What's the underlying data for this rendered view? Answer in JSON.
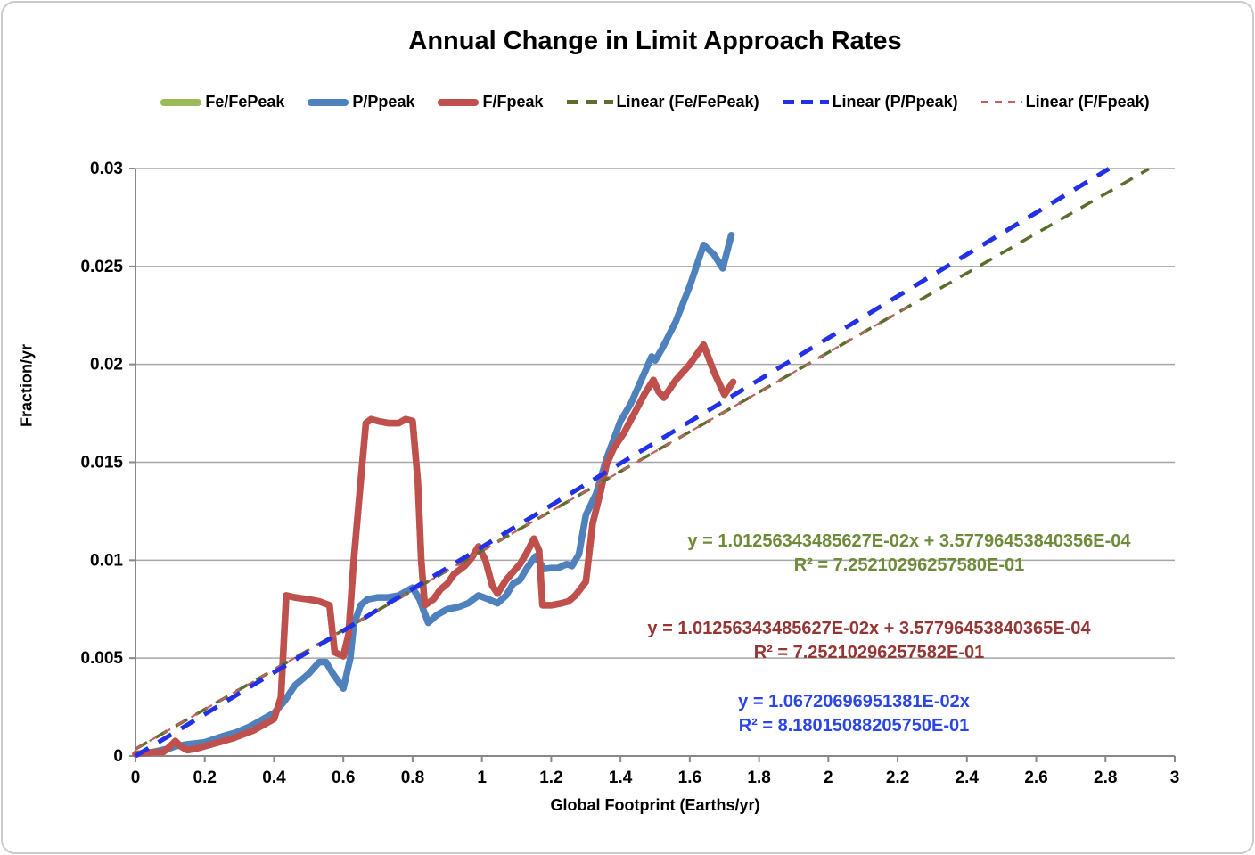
{
  "chart_data": {
    "type": "line",
    "title": "Annual Change in Limit Approach Rates",
    "xlabel": "Global Footprint (Earths/yr)",
    "ylabel": "Fraction/yr",
    "xlim": [
      0,
      3
    ],
    "ylim": [
      0,
      0.03
    ],
    "grid": "horizontal",
    "legend_position": "top",
    "xticks": [
      {
        "value": 0,
        "label": "0"
      },
      {
        "value": 0.2,
        "label": "0.2"
      },
      {
        "value": 0.4,
        "label": "0.4"
      },
      {
        "value": 0.6,
        "label": "0.6"
      },
      {
        "value": 0.8,
        "label": "0.8"
      },
      {
        "value": 1,
        "label": "1"
      },
      {
        "value": 1.2,
        "label": "1.2"
      },
      {
        "value": 1.4,
        "label": "1.4"
      },
      {
        "value": 1.6,
        "label": "1.6"
      },
      {
        "value": 1.8,
        "label": "1.8"
      },
      {
        "value": 2,
        "label": "2"
      },
      {
        "value": 2.2,
        "label": "2.2"
      },
      {
        "value": 2.4,
        "label": "2.4"
      },
      {
        "value": 2.6,
        "label": "2.6"
      },
      {
        "value": 2.8,
        "label": "2.8"
      },
      {
        "value": 3,
        "label": "3"
      }
    ],
    "yticks": [
      {
        "value": 0,
        "label": "0"
      },
      {
        "value": 0.005,
        "label": "0.005"
      },
      {
        "value": 0.01,
        "label": "0.01"
      },
      {
        "value": 0.015,
        "label": "0.015"
      },
      {
        "value": 0.02,
        "label": "0.02"
      },
      {
        "value": 0.025,
        "label": "0.025"
      },
      {
        "value": 0.03,
        "label": "0.03"
      }
    ],
    "series": [
      {
        "name": "Fe/FePeak",
        "color": "#9BBB59",
        "note": "coincides with F/Fpeak curve (hidden beneath it)",
        "points": [
          [
            0,
            0.0001
          ],
          [
            0.05,
            0.0002
          ],
          [
            0.08,
            0.0002
          ],
          [
            0.1,
            0.0005
          ],
          [
            0.115,
            0.00077
          ],
          [
            0.13,
            0.0005
          ],
          [
            0.15,
            0.0003
          ],
          [
            0.18,
            0.0004
          ],
          [
            0.2,
            0.0005
          ],
          [
            0.24,
            0.0007
          ],
          [
            0.28,
            0.0009
          ],
          [
            0.31,
            0.0011
          ],
          [
            0.34,
            0.0013
          ],
          [
            0.37,
            0.0016
          ],
          [
            0.4,
            0.0019
          ],
          [
            0.42,
            0.003
          ],
          [
            0.435,
            0.0082
          ],
          [
            0.46,
            0.0081
          ],
          [
            0.5,
            0.008
          ],
          [
            0.53,
            0.0079
          ],
          [
            0.56,
            0.0077
          ],
          [
            0.575,
            0.0053
          ],
          [
            0.6,
            0.0051
          ],
          [
            0.615,
            0.0062
          ],
          [
            0.63,
            0.01
          ],
          [
            0.65,
            0.014
          ],
          [
            0.665,
            0.017
          ],
          [
            0.68,
            0.0172
          ],
          [
            0.7,
            0.0171
          ],
          [
            0.73,
            0.017
          ],
          [
            0.76,
            0.017
          ],
          [
            0.78,
            0.0172
          ],
          [
            0.8,
            0.0171
          ],
          [
            0.815,
            0.014
          ],
          [
            0.825,
            0.01
          ],
          [
            0.835,
            0.0077
          ],
          [
            0.86,
            0.008
          ],
          [
            0.88,
            0.0085
          ],
          [
            0.9,
            0.0088
          ],
          [
            0.92,
            0.0093
          ],
          [
            0.95,
            0.0097
          ],
          [
            0.97,
            0.0101
          ],
          [
            0.99,
            0.0107
          ],
          [
            1.01,
            0.01
          ],
          [
            1.03,
            0.0087
          ],
          [
            1.045,
            0.0083
          ],
          [
            1.07,
            0.009
          ],
          [
            1.09,
            0.0094
          ],
          [
            1.11,
            0.0098
          ],
          [
            1.13,
            0.0104
          ],
          [
            1.15,
            0.0111
          ],
          [
            1.165,
            0.0105
          ],
          [
            1.175,
            0.0077
          ],
          [
            1.2,
            0.0077
          ],
          [
            1.23,
            0.0078
          ],
          [
            1.25,
            0.0079
          ],
          [
            1.27,
            0.0082
          ],
          [
            1.3,
            0.0089
          ],
          [
            1.32,
            0.0119
          ],
          [
            1.34,
            0.0133
          ],
          [
            1.36,
            0.0149
          ],
          [
            1.38,
            0.0157
          ],
          [
            1.41,
            0.0165
          ],
          [
            1.44,
            0.0175
          ],
          [
            1.47,
            0.0185
          ],
          [
            1.495,
            0.0192
          ],
          [
            1.51,
            0.0186
          ],
          [
            1.525,
            0.0183
          ],
          [
            1.56,
            0.0192
          ],
          [
            1.6,
            0.02
          ],
          [
            1.64,
            0.021
          ],
          [
            1.67,
            0.0196
          ],
          [
            1.7,
            0.01845
          ],
          [
            1.725,
            0.0191
          ]
        ]
      },
      {
        "name": "P/Ppeak",
        "color": "#4F81BD",
        "points": [
          [
            0,
            0.0001
          ],
          [
            0.05,
            0.0002
          ],
          [
            0.1,
            0.0004
          ],
          [
            0.115,
            0.0005
          ],
          [
            0.15,
            0.0006
          ],
          [
            0.2,
            0.0007
          ],
          [
            0.25,
            0.001
          ],
          [
            0.29,
            0.0012
          ],
          [
            0.33,
            0.0015
          ],
          [
            0.37,
            0.0019
          ],
          [
            0.4,
            0.0022
          ],
          [
            0.43,
            0.0028
          ],
          [
            0.46,
            0.0036
          ],
          [
            0.5,
            0.0042
          ],
          [
            0.53,
            0.0048
          ],
          [
            0.55,
            0.0048
          ],
          [
            0.57,
            0.0042
          ],
          [
            0.6,
            0.00345
          ],
          [
            0.62,
            0.005
          ],
          [
            0.63,
            0.0067
          ],
          [
            0.65,
            0.0077
          ],
          [
            0.67,
            0.008
          ],
          [
            0.7,
            0.0081
          ],
          [
            0.73,
            0.0081
          ],
          [
            0.76,
            0.0082
          ],
          [
            0.78,
            0.0084
          ],
          [
            0.8,
            0.0086
          ],
          [
            0.82,
            0.008
          ],
          [
            0.845,
            0.0068
          ],
          [
            0.87,
            0.0072
          ],
          [
            0.9,
            0.0075
          ],
          [
            0.93,
            0.0076
          ],
          [
            0.96,
            0.0078
          ],
          [
            0.99,
            0.0082
          ],
          [
            1.02,
            0.008
          ],
          [
            1.045,
            0.0078
          ],
          [
            1.07,
            0.0082
          ],
          [
            1.09,
            0.0088
          ],
          [
            1.11,
            0.009
          ],
          [
            1.13,
            0.0096
          ],
          [
            1.155,
            0.0102
          ],
          [
            1.17,
            0.0098
          ],
          [
            1.18,
            0.00955
          ],
          [
            1.2,
            0.0096
          ],
          [
            1.22,
            0.0096
          ],
          [
            1.245,
            0.0098
          ],
          [
            1.26,
            0.0097
          ],
          [
            1.28,
            0.0103
          ],
          [
            1.3,
            0.0123
          ],
          [
            1.33,
            0.0134
          ],
          [
            1.36,
            0.0152
          ],
          [
            1.4,
            0.0171
          ],
          [
            1.43,
            0.018
          ],
          [
            1.46,
            0.0192
          ],
          [
            1.49,
            0.0204
          ],
          [
            1.5,
            0.0202
          ],
          [
            1.52,
            0.0208
          ],
          [
            1.56,
            0.0222
          ],
          [
            1.6,
            0.024
          ],
          [
            1.64,
            0.0261
          ],
          [
            1.67,
            0.0256
          ],
          [
            1.695,
            0.0249
          ],
          [
            1.72,
            0.0266
          ]
        ]
      },
      {
        "name": "F/Fpeak",
        "color": "#C0504D",
        "points": [
          [
            0,
            0.0001
          ],
          [
            0.05,
            0.0002
          ],
          [
            0.08,
            0.0002
          ],
          [
            0.1,
            0.0005
          ],
          [
            0.115,
            0.00077
          ],
          [
            0.13,
            0.0005
          ],
          [
            0.15,
            0.0003
          ],
          [
            0.18,
            0.0004
          ],
          [
            0.2,
            0.0005
          ],
          [
            0.24,
            0.0007
          ],
          [
            0.28,
            0.0009
          ],
          [
            0.31,
            0.0011
          ],
          [
            0.34,
            0.0013
          ],
          [
            0.37,
            0.0016
          ],
          [
            0.4,
            0.0019
          ],
          [
            0.42,
            0.003
          ],
          [
            0.435,
            0.0082
          ],
          [
            0.46,
            0.0081
          ],
          [
            0.5,
            0.008
          ],
          [
            0.53,
            0.0079
          ],
          [
            0.56,
            0.0077
          ],
          [
            0.575,
            0.0053
          ],
          [
            0.6,
            0.0051
          ],
          [
            0.615,
            0.0062
          ],
          [
            0.63,
            0.01
          ],
          [
            0.65,
            0.014
          ],
          [
            0.665,
            0.017
          ],
          [
            0.68,
            0.0172
          ],
          [
            0.7,
            0.0171
          ],
          [
            0.73,
            0.017
          ],
          [
            0.76,
            0.017
          ],
          [
            0.78,
            0.0172
          ],
          [
            0.8,
            0.0171
          ],
          [
            0.815,
            0.014
          ],
          [
            0.825,
            0.01
          ],
          [
            0.835,
            0.0077
          ],
          [
            0.86,
            0.008
          ],
          [
            0.88,
            0.0085
          ],
          [
            0.9,
            0.0088
          ],
          [
            0.92,
            0.0093
          ],
          [
            0.95,
            0.0097
          ],
          [
            0.97,
            0.0101
          ],
          [
            0.99,
            0.0107
          ],
          [
            1.01,
            0.01
          ],
          [
            1.03,
            0.0087
          ],
          [
            1.045,
            0.0083
          ],
          [
            1.07,
            0.009
          ],
          [
            1.09,
            0.0094
          ],
          [
            1.11,
            0.0098
          ],
          [
            1.13,
            0.0104
          ],
          [
            1.15,
            0.0111
          ],
          [
            1.165,
            0.0105
          ],
          [
            1.175,
            0.0077
          ],
          [
            1.2,
            0.0077
          ],
          [
            1.23,
            0.0078
          ],
          [
            1.25,
            0.0079
          ],
          [
            1.27,
            0.0082
          ],
          [
            1.3,
            0.0089
          ],
          [
            1.32,
            0.0119
          ],
          [
            1.34,
            0.0133
          ],
          [
            1.36,
            0.0149
          ],
          [
            1.38,
            0.0157
          ],
          [
            1.41,
            0.0165
          ],
          [
            1.44,
            0.0175
          ],
          [
            1.47,
            0.0185
          ],
          [
            1.495,
            0.0192
          ],
          [
            1.51,
            0.0186
          ],
          [
            1.525,
            0.0183
          ],
          [
            1.56,
            0.0192
          ],
          [
            1.6,
            0.02
          ],
          [
            1.64,
            0.021
          ],
          [
            1.67,
            0.0196
          ],
          [
            1.7,
            0.01845
          ],
          [
            1.725,
            0.0191
          ]
        ]
      }
    ],
    "trendlines": [
      {
        "label": "Linear (Fe/FePeak)",
        "color": "#5B6E2D",
        "weight": "medium",
        "x1": 0,
        "y1": 0.000357796,
        "x2": 2.925,
        "y2": 0.0299754
      },
      {
        "label": "Linear (F/Fpeak)",
        "color": "#C0625F",
        "weight": "thin",
        "x1": 0,
        "y1": 0.000357796,
        "x2": 2.23,
        "y2": 0.0229381
      },
      {
        "label": "Linear (P/Ppeak)",
        "color": "#2230E8",
        "weight": "bold",
        "x1": 0,
        "y1": 0,
        "x2": 2.81,
        "y2": 0.0299885
      }
    ],
    "colors": {
      "gridline": "#A6A6A6",
      "axis": "#898989",
      "tick_text": "#000000"
    }
  },
  "legend": [
    {
      "label": "Fe/FePeak",
      "type": "solid",
      "color": "#9BBB59"
    },
    {
      "label": "P/Ppeak",
      "type": "solid",
      "color": "#4F81BD"
    },
    {
      "label": "F/Fpeak",
      "type": "solid",
      "color": "#C0504D"
    },
    {
      "label": "Linear (Fe/FePeak)",
      "type": "dashed",
      "color": "#5B6E2D"
    },
    {
      "label": "Linear (P/Ppeak)",
      "type": "dashed",
      "color": "#2230E8"
    },
    {
      "label": "Linear (F/Fpeak)",
      "type": "dashed-thin",
      "color": "#C0625F"
    }
  ],
  "annotations": [
    {
      "series": "Fe/FePeak",
      "color": "#6F8B3A",
      "line1": "y = 1.01256343485627E-02x + 3.57796453840356E-04",
      "line2": "R² = 7.25210296257580E-01"
    },
    {
      "series": "F/Fpeak",
      "color": "#943634",
      "line1": "y = 1.01256343485627E-02x + 3.57796453840365E-04",
      "line2": "R² = 7.25210296257582E-01"
    },
    {
      "series": "P/Ppeak",
      "color": "#2B46E8",
      "line1": "y = 1.06720696951381E-02x",
      "line2": "R² = 8.18015088205750E-01"
    }
  ]
}
